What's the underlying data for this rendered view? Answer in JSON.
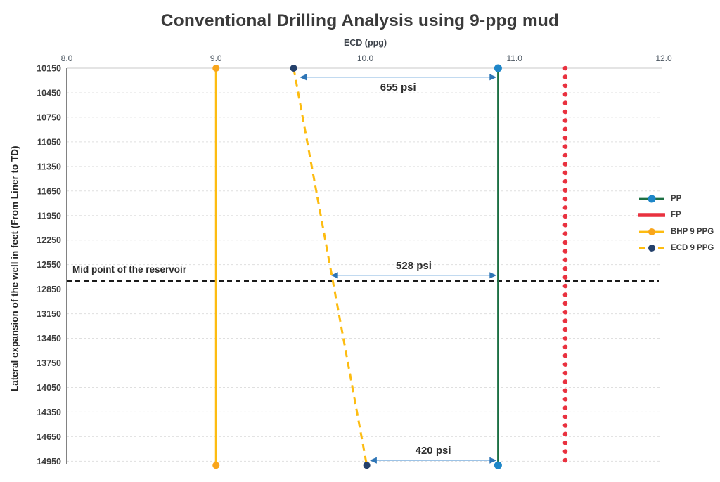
{
  "chart_data": {
    "type": "line",
    "title": "Conventional Drilling Analysis using 9-ppg mud",
    "xlabel": "ECD (ppg)",
    "ylabel": "Lateral expansion of the well in feet (From Liner to TD)",
    "x_axis_position": "top",
    "y_axis_direction": "increasing-downward",
    "xlim": [
      8.0,
      12.0
    ],
    "xticks": [
      "8.0",
      "9.0",
      "10.0",
      "11.0",
      "12.0"
    ],
    "ylim": [
      10150,
      15050
    ],
    "yticks": [
      10150,
      10450,
      10750,
      11050,
      11350,
      11650,
      11950,
      12250,
      12550,
      12850,
      13150,
      13450,
      13750,
      14050,
      14350,
      14650,
      14950
    ],
    "grid": true,
    "legend_position": "right",
    "series": [
      {
        "name": "PP",
        "style": "solid",
        "line_color": "#1d7044",
        "line_width": 2.6,
        "marker": {
          "shape": "circle",
          "color": "#1e86c8",
          "radius": 5.5,
          "at": "ends"
        },
        "points": [
          [
            10.89,
            10150
          ],
          [
            10.89,
            15000
          ]
        ]
      },
      {
        "name": "FP",
        "style": "dotted",
        "line_color": "#e9313f",
        "line_width": 6.6,
        "marker": null,
        "points": [
          [
            11.34,
            10150
          ],
          [
            11.34,
            15000
          ]
        ]
      },
      {
        "name": "BHP 9 PPG",
        "style": "solid",
        "line_color": "#fdbc11",
        "line_width": 3,
        "marker": {
          "shape": "circle",
          "color": "#f9a51b",
          "radius": 5,
          "at": "ends"
        },
        "points": [
          [
            9.0,
            10150
          ],
          [
            9.0,
            15000
          ]
        ]
      },
      {
        "name": "ECD 9 PPG",
        "style": "dashed",
        "line_color": "#fdbc11",
        "line_width": 3,
        "marker": {
          "shape": "circle",
          "color": "#24406b",
          "radius": 5,
          "at": "ends"
        },
        "points": [
          [
            9.52,
            10150
          ],
          [
            10.01,
            15000
          ]
        ]
      }
    ],
    "annotations": [
      {
        "label": "655 psi",
        "y": 10260,
        "x1": 9.56,
        "x2": 10.88,
        "label_side": "below"
      },
      {
        "label": "528 psi",
        "y": 12680,
        "x1": 9.77,
        "x2": 10.88,
        "label_side": "above"
      },
      {
        "label": "420 psi",
        "y": 14940,
        "x1": 10.03,
        "x2": 10.88,
        "label_side": "above"
      }
    ],
    "annotation_style": {
      "line_color": "#9dc3e6",
      "head_color": "#2e75b6",
      "text_color": "#2f2f2f"
    },
    "reference_line": {
      "label": "Mid point of the reservoir",
      "y": 12750,
      "color": "#1a1a1a",
      "style": "dashed"
    },
    "colors": {
      "grid_dashed": "#dfdfdf",
      "grid_top_solid": "#c9c9c9",
      "axis_line": "#4d4d4d",
      "background": "#ffffff"
    }
  }
}
